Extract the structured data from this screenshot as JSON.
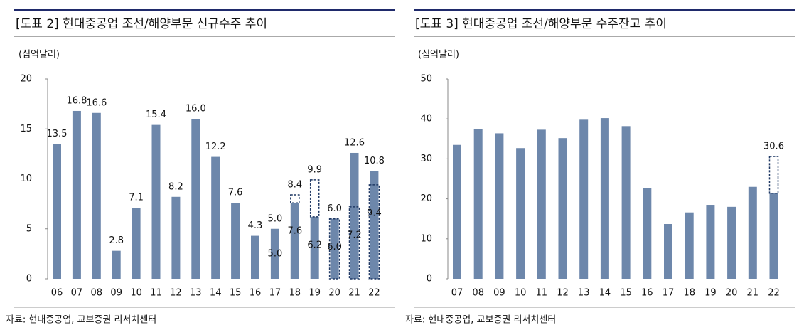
{
  "chart_data": [
    {
      "type": "bar",
      "title": "[도표 2] 현대중공업 조선/해양부문 신규수주 추이",
      "y_axis_label": "(십억달러)",
      "source": "자료: 현대중공업, 교보증권 리서치센터",
      "categories": [
        "06",
        "07",
        "08",
        "09",
        "10",
        "11",
        "12",
        "13",
        "14",
        "15",
        "16",
        "17",
        "18",
        "19",
        "20",
        "21",
        "22"
      ],
      "values": [
        13.5,
        16.8,
        16.6,
        2.8,
        7.1,
        15.4,
        8.2,
        16.0,
        12.2,
        7.6,
        4.3,
        5.0,
        8.4,
        9.9,
        6.0,
        12.6,
        10.8
      ],
      "value_labels": [
        "13.5",
        "16.8",
        "16.6",
        "2.8",
        "7.1",
        "15.4",
        "8.2",
        "16.0",
        "12.2",
        "7.6",
        "4.3",
        "5.0",
        "8.4",
        "9.9",
        "6.0",
        "12.6",
        "10.8"
      ],
      "inner": [
        null,
        null,
        null,
        null,
        null,
        null,
        null,
        null,
        null,
        null,
        null,
        5.0,
        7.6,
        6.2,
        6.0,
        7.2,
        9.4
      ],
      "inner_labels": [
        null,
        null,
        null,
        null,
        null,
        null,
        null,
        null,
        null,
        null,
        null,
        "5.0",
        "7.6",
        "6.2",
        "6.0",
        "7.2",
        "9.4"
      ],
      "dashed": [
        null,
        null,
        null,
        null,
        null,
        null,
        null,
        null,
        null,
        null,
        null,
        null,
        "upper",
        "upper",
        "lower",
        "lower",
        "lower"
      ],
      "color": "#6d87ab",
      "dash_color": "#1f3864",
      "ylim": [
        0,
        20
      ],
      "yticks": [
        0,
        5,
        10,
        15,
        20
      ]
    },
    {
      "type": "bar",
      "title": "[도표 3] 현대중공업 조선/해양부문 수주잔고 추이",
      "y_axis_label": "(십억달러)",
      "source": "자료: 현대중공업, 교보증권 리서치센터",
      "categories": [
        "07",
        "08",
        "09",
        "10",
        "11",
        "12",
        "13",
        "14",
        "15",
        "16",
        "17",
        "18",
        "19",
        "20",
        "21",
        "22"
      ],
      "values": [
        33.5,
        37.5,
        36.4,
        32.7,
        37.3,
        35.2,
        39.8,
        40.2,
        38.2,
        22.7,
        13.7,
        16.6,
        18.5,
        18.0,
        23.0,
        30.6
      ],
      "value_labels": [
        null,
        null,
        null,
        null,
        null,
        null,
        null,
        null,
        null,
        null,
        null,
        null,
        null,
        null,
        null,
        "30.6"
      ],
      "inner": [
        null,
        null,
        null,
        null,
        null,
        null,
        null,
        null,
        null,
        null,
        null,
        null,
        null,
        null,
        null,
        21.4
      ],
      "inner_labels": [
        null,
        null,
        null,
        null,
        null,
        null,
        null,
        null,
        null,
        null,
        null,
        null,
        null,
        null,
        null,
        null
      ],
      "dashed": [
        null,
        null,
        null,
        null,
        null,
        null,
        null,
        null,
        null,
        null,
        null,
        null,
        null,
        null,
        null,
        "upper"
      ],
      "color": "#6d87ab",
      "dash_color": "#1f3864",
      "ylim": [
        0,
        50
      ],
      "yticks": [
        0,
        10,
        20,
        30,
        40,
        50
      ]
    }
  ]
}
